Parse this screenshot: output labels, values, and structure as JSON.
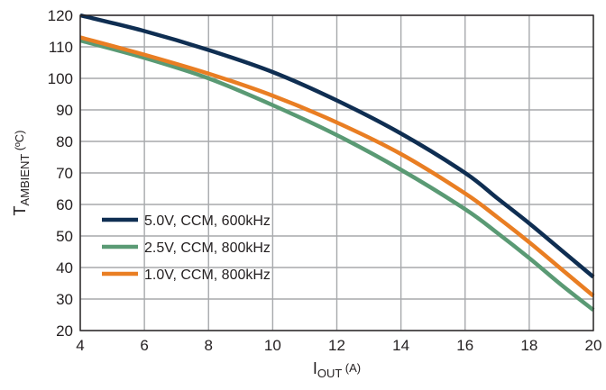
{
  "chart_data": {
    "type": "line",
    "xlabel": {
      "main": "I",
      "sub": "OUT",
      "unit": " (A)"
    },
    "ylabel": {
      "main": "T",
      "sub": "AMBIENT",
      "unit": " (ºC)"
    },
    "xlim": [
      4,
      20
    ],
    "ylim": [
      20,
      120
    ],
    "xticks": [
      4,
      6,
      8,
      10,
      12,
      14,
      16,
      18,
      20
    ],
    "yticks": [
      20,
      30,
      40,
      50,
      60,
      70,
      80,
      90,
      100,
      110,
      120
    ],
    "grid": true,
    "legend_position": "lower-left",
    "series": [
      {
        "name": "5.0V, CCM, 600kHz",
        "color": "#0f2e52",
        "x": [
          4,
          6,
          8,
          10,
          12,
          14,
          16,
          17,
          18,
          19,
          20
        ],
        "y": [
          120,
          115,
          109,
          102,
          93,
          82.5,
          70,
          62,
          54,
          45.5,
          37
        ]
      },
      {
        "name": "2.5V, CCM, 800kHz",
        "color": "#5a9a74",
        "x": [
          4,
          6,
          8,
          10,
          12,
          14,
          16,
          17,
          18,
          19,
          20
        ],
        "y": [
          112,
          106.5,
          100,
          91.5,
          82,
          71,
          58.5,
          51,
          43,
          34.5,
          26.5
        ]
      },
      {
        "name": "1.0V, CCM, 800kHz",
        "color": "#e97e23",
        "x": [
          4,
          6,
          8,
          10,
          12,
          14,
          16,
          17,
          18,
          19,
          20
        ],
        "y": [
          113,
          107.5,
          101.5,
          94.5,
          86,
          76,
          63.5,
          56,
          48,
          39.5,
          31
        ]
      }
    ]
  }
}
